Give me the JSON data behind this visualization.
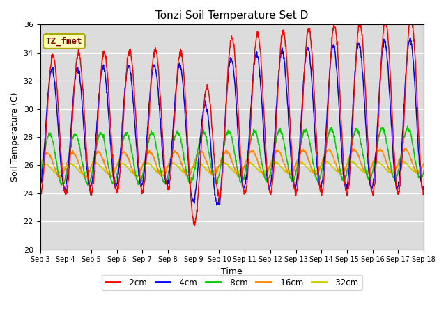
{
  "title": "Tonzi Soil Temperature Set D",
  "xlabel": "Time",
  "ylabel": "Soil Temperature (C)",
  "ylim": [
    20,
    36
  ],
  "yticks": [
    20,
    22,
    24,
    26,
    28,
    30,
    32,
    34,
    36
  ],
  "annotation_text": "TZ_fmet",
  "series_names": [
    "-2cm",
    "-4cm",
    "-8cm",
    "-16cm",
    "-32cm"
  ],
  "series_colors": [
    "#ff0000",
    "#0000ff",
    "#00cc00",
    "#ff8800",
    "#cccc00"
  ],
  "n_days": 15,
  "points_per_day": 96,
  "start_day": 3,
  "bg_color": "#dcdcdc",
  "fig_bg": "#ffffff"
}
